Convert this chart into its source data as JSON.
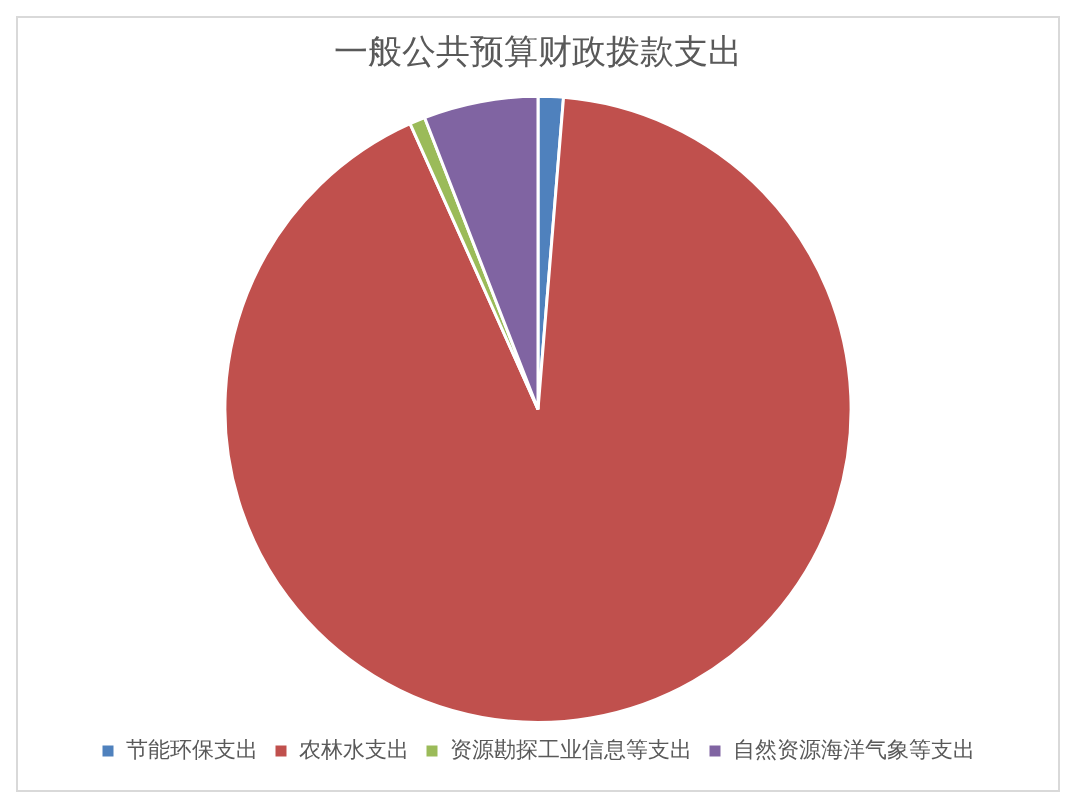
{
  "chart_data": {
    "type": "pie",
    "title": "一般公共预算财政拨款支出",
    "categories": [
      "节能环保支出",
      "农林水支出",
      "资源勘探工业信息等支出",
      "自然资源海洋气象等支出"
    ],
    "values": [
      1.3,
      92.0,
      0.8,
      5.9
    ],
    "colors": [
      "#4f81bd",
      "#c0504d",
      "#9bbb59",
      "#8064a2"
    ],
    "legend": "bottom"
  }
}
